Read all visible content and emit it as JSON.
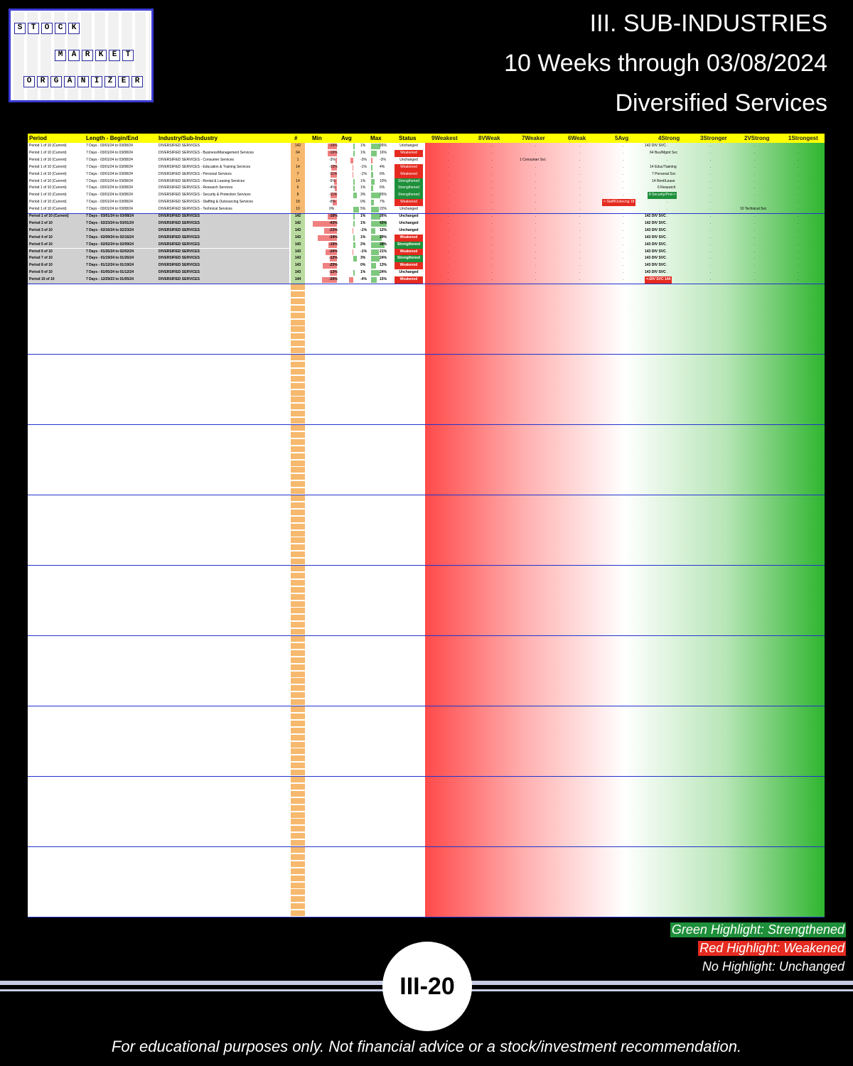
{
  "logo": {
    "rows": [
      [
        "S",
        "T",
        "O",
        "C",
        "K"
      ],
      [
        "M",
        "A",
        "R",
        "K",
        "E",
        "T"
      ],
      [
        "O",
        "R",
        "G",
        "A",
        "N",
        "I",
        "Z",
        "E",
        "R"
      ]
    ]
  },
  "header": {
    "line1": "III. SUB-INDUSTRIES",
    "line2": "10 Weeks through 03/08/2024",
    "line3": "Diversified Services"
  },
  "columns": {
    "period": "Period",
    "length": "Length - Begin/End",
    "industry": "Industry/Sub-Industry",
    "count": "#",
    "min": "Min",
    "avg": "Avg",
    "max": "Max",
    "status": "Status",
    "levels": [
      "9Weakest",
      "8VWeak",
      "7Weaker",
      "6Weak",
      "5Avg",
      "4Strong",
      "3Stronger",
      "2VStrong",
      "1Strongest"
    ]
  },
  "rows": [
    {
      "p": "Period 1 of 10 (Current)",
      "l": "7 Days - 03/01/24 to 03/08/24",
      "i": "DIVERSIFIED SERVICES",
      "n": "142",
      "mn": "-16%",
      "av": "1%",
      "mx": "26%",
      "st": "Unchanged",
      "lv": "142 DIV SVC",
      "g": 0
    },
    {
      "p": "Period 1 of 10 (Current)",
      "l": "7 Days - 03/01/24 to 03/08/24",
      "i": "DIVERSIFIED SERVICES - Business/Management Services",
      "n": "64",
      "mn": "-16%",
      "av": "1%",
      "mx": "16%",
      "st": "Weakened",
      "lv": "64 Bus/Mgmt Svc",
      "g": 0
    },
    {
      "p": "Period 1 of 10 (Current)",
      "l": "7 Days - 03/01/24 to 03/08/24",
      "i": "DIVERSIFIED SERVICES - Consumer Services",
      "n": "1",
      "mn": "-3%",
      "av": "-3%",
      "mx": "-3%",
      "st": "Unchanged",
      "lv": "1 Consumer Svc",
      "g": 0
    },
    {
      "p": "Period 1 of 10 (Current)",
      "l": "7 Days - 03/01/24 to 03/08/24",
      "i": "DIVERSIFIED SERVICES - Education & Training Services",
      "n": "14",
      "mn": "-10%",
      "av": "-1%",
      "mx": "4%",
      "st": "Weakened",
      "lv": "14 Educ/Training",
      "g": 0
    },
    {
      "p": "Period 1 of 10 (Current)",
      "l": "7 Days - 03/01/24 to 03/08/24",
      "i": "DIVERSIFIED SERVICES - Personal Services",
      "n": "7",
      "mn": "-11%",
      "av": "-1%",
      "mx": "6%",
      "st": "Weakened",
      "lv": "7 Personal Svc",
      "g": 0
    },
    {
      "p": "Period 1 of 10 (Current)",
      "l": "7 Days - 03/01/24 to 03/08/24",
      "i": "DIVERSIFIED SERVICES - Rental & Leasing Services",
      "n": "14",
      "mn": "-5%",
      "av": "1%",
      "mx": "10%",
      "st": "Strengthened",
      "lv": "14 Rent/Lease",
      "g": 0
    },
    {
      "p": "Period 1 of 10 (Current)",
      "l": "7 Days - 03/01/24 to 03/08/24",
      "i": "DIVERSIFIED SERVICES - Research Services",
      "n": "6",
      "mn": "-4%",
      "av": "1%",
      "mx": "6%",
      "st": "Strengthened",
      "lv": "6 Research",
      "g": 0
    },
    {
      "p": "Period 1 of 10 (Current)",
      "l": "7 Days - 03/01/24 to 03/08/24",
      "i": "DIVERSIFIED SERVICES - Security & Protection Services",
      "n": "8",
      "mn": "-11%",
      "av": "3%",
      "mx": "26%",
      "st": "Strengthened",
      "lv": "8 Security/Prot->",
      "g": 0
    },
    {
      "p": "Period 1 of 10 (Current)",
      "l": "7 Days - 03/01/24 to 03/08/24",
      "i": "DIVERSIFIED SERVICES - Staffing & Outsourcing Services",
      "n": "18",
      "mn": "-8%",
      "av": "0%",
      "mx": "7%",
      "st": "Weakened",
      "lv": "<-Staff/Outsrcng 18",
      "g": 0
    },
    {
      "p": "Period 1 of 10 (Current)",
      "l": "7 Days - 03/01/24 to 03/08/24",
      "i": "DIVERSIFIED SERVICES - Technical Services",
      "n": "10",
      "mn": "0%",
      "av": "5%",
      "mx": "22%",
      "st": "Unchanged",
      "lv": "10 Technical Svc",
      "g": 0
    },
    {
      "p": "Period 1 of 10 (Current)",
      "l": "7 Days - 03/01/24 to 03/08/24",
      "i": "DIVERSIFIED SERVICES",
      "n": "142",
      "mn": "-16%",
      "av": "1%",
      "mx": "26%",
      "st": "Unchanged",
      "lv": "142 DIV SVC",
      "g": 1
    },
    {
      "p": "Period 2 of 10",
      "l": "7 Days - 02/23/24 to 03/01/24",
      "i": "DIVERSIFIED SERVICES",
      "n": "142",
      "mn": "-43%",
      "av": "1%",
      "mx": "43%",
      "st": "Unchanged",
      "lv": "142 DIV SVC",
      "g": 1
    },
    {
      "p": "Period 3 of 10",
      "l": "7 Days - 02/16/24 to 02/23/24",
      "i": "DIVERSIFIED SERVICES",
      "n": "143",
      "mn": "-23%",
      "av": "-1%",
      "mx": "12%",
      "st": "Unchanged",
      "lv": "143 DIV SVC",
      "g": 1
    },
    {
      "p": "Period 4 of 10",
      "l": "7 Days - 02/09/24 to 02/16/24",
      "i": "DIVERSIFIED SERVICES",
      "n": "143",
      "mn": "-34%",
      "av": "1%",
      "mx": "29%",
      "st": "Weakened",
      "lv": "143 DIV SVC",
      "g": 1
    },
    {
      "p": "Period 5 of 10",
      "l": "7 Days - 02/02/24 to 02/09/24",
      "i": "DIVERSIFIED SERVICES",
      "n": "143",
      "mn": "-15%",
      "av": "2%",
      "mx": "38%",
      "st": "Strengthened",
      "lv": "143 DIV SVC",
      "g": 1
    },
    {
      "p": "Period 6 of 10",
      "l": "7 Days - 01/26/24 to 02/02/24",
      "i": "DIVERSIFIED SERVICES",
      "n": "143",
      "mn": "-20%",
      "av": "-1%",
      "mx": "21%",
      "st": "Weakened",
      "lv": "143 DIV SVC",
      "g": 1
    },
    {
      "p": "Period 7 of 10",
      "l": "7 Days - 01/19/24 to 01/26/24",
      "i": "DIVERSIFIED SERVICES",
      "n": "143",
      "mn": "-12%",
      "av": "3%",
      "mx": "24%",
      "st": "Strengthened",
      "lv": "143 DIV SVC",
      "g": 1
    },
    {
      "p": "Period 8 of 10",
      "l": "7 Days - 01/12/24 to 01/19/24",
      "i": "DIVERSIFIED SERVICES",
      "n": "143",
      "mn": "-25%",
      "av": "0%",
      "mx": "13%",
      "st": "Weakened",
      "lv": "143 DIV SVC",
      "g": 1
    },
    {
      "p": "Period 9 of 10",
      "l": "7 Days - 01/05/24 to 01/12/24",
      "i": "DIVERSIFIED SERVICES",
      "n": "143",
      "mn": "-13%",
      "av": "1%",
      "mx": "24%",
      "st": "Unchanged",
      "lv": "143 DIV SVC",
      "g": 1
    },
    {
      "p": "Period 10 of 10",
      "l": "7 Days - 12/29/23 to 01/05/24",
      "i": "DIVERSIFIED SERVICES",
      "n": "144",
      "mn": "-26%",
      "av": "-4%",
      "mx": "15%",
      "st": "Weakened",
      "lv": "<-DIV SVC 144",
      "g": 1
    }
  ],
  "legend": {
    "green": "Green Highlight: Strengthened",
    "red": "Red Highlight: Weakened",
    "none": "No Highlight: Unchanged"
  },
  "page_number": "III-20",
  "disclaimer": "For educational purposes only. Not financial advice or a stock/investment recommendation.",
  "colors": {
    "strengthened": "#1e8f3a",
    "weakened": "#e52a1f",
    "header": "#ffff00"
  }
}
